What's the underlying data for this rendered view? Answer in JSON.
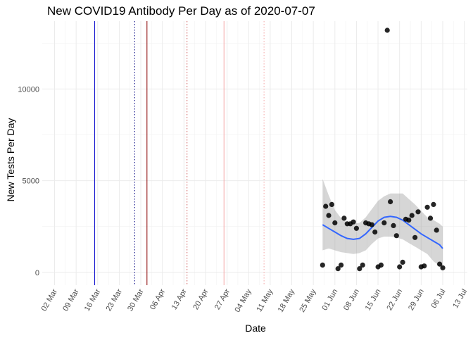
{
  "chart_data": {
    "type": "scatter",
    "title": "New COVID19 Antibody Per Day as of 2020-07-07",
    "xlabel": "Date",
    "ylabel": "New Tests Per Day",
    "x_tick_labels": [
      "02 Mar",
      "09 Mar",
      "16 Mar",
      "23 Mar",
      "30 Mar",
      "06 Apr",
      "13 Apr",
      "20 Apr",
      "27 Apr",
      "04 May",
      "11 May",
      "18 May",
      "25 May",
      "01 Jun",
      "08 Jun",
      "15 Jun",
      "22 Jun",
      "29 Jun",
      "06 Jul",
      "13 Jul"
    ],
    "x_ticks": [
      "2020-03-02",
      "2020-03-09",
      "2020-03-16",
      "2020-03-23",
      "2020-03-30",
      "2020-04-06",
      "2020-04-13",
      "2020-04-20",
      "2020-04-27",
      "2020-05-04",
      "2020-05-11",
      "2020-05-18",
      "2020-05-25",
      "2020-06-01",
      "2020-06-08",
      "2020-06-15",
      "2020-06-22",
      "2020-06-29",
      "2020-07-06",
      "2020-07-13"
    ],
    "xlim": [
      "2020-02-27",
      "2020-07-14"
    ],
    "ylim": [
      -700,
      13700
    ],
    "y_ticks": [
      0,
      5000,
      10000
    ],
    "grid": true,
    "vlines": [
      {
        "x": "2020-03-15",
        "color": "#0000cc",
        "style": "solid"
      },
      {
        "x": "2020-03-28",
        "color": "#000080",
        "style": "dotted"
      },
      {
        "x": "2020-04-01",
        "color": "#8b0000",
        "style": "solid"
      },
      {
        "x": "2020-04-14",
        "color": "#cd5c5c",
        "style": "dotted"
      },
      {
        "x": "2020-04-26",
        "color": "#f4a6a6",
        "style": "solid"
      },
      {
        "x": "2020-05-09",
        "color": "#f4a6a6",
        "style": "dotted"
      }
    ],
    "series": [
      {
        "type": "scatter",
        "color": "#000000",
        "points": [
          [
            "2020-05-28",
            400
          ],
          [
            "2020-05-29",
            3600
          ],
          [
            "2020-05-30",
            3100
          ],
          [
            "2020-05-31",
            3700
          ],
          [
            "2020-06-01",
            2700
          ],
          [
            "2020-06-02",
            200
          ],
          [
            "2020-06-03",
            400
          ],
          [
            "2020-06-04",
            2950
          ],
          [
            "2020-06-05",
            2650
          ],
          [
            "2020-06-06",
            2650
          ],
          [
            "2020-06-07",
            2750
          ],
          [
            "2020-06-08",
            2400
          ],
          [
            "2020-06-09",
            200
          ],
          [
            "2020-06-10",
            400
          ],
          [
            "2020-06-11",
            2700
          ],
          [
            "2020-06-12",
            2650
          ],
          [
            "2020-06-13",
            2600
          ],
          [
            "2020-06-14",
            2200
          ],
          [
            "2020-06-15",
            300
          ],
          [
            "2020-06-16",
            400
          ],
          [
            "2020-06-17",
            2700
          ],
          [
            "2020-06-18",
            13200
          ],
          [
            "2020-06-19",
            3850
          ],
          [
            "2020-06-20",
            2550
          ],
          [
            "2020-06-21",
            2000
          ],
          [
            "2020-06-22",
            300
          ],
          [
            "2020-06-23",
            550
          ],
          [
            "2020-06-24",
            2900
          ],
          [
            "2020-06-25",
            2850
          ],
          [
            "2020-06-26",
            3100
          ],
          [
            "2020-06-27",
            1900
          ],
          [
            "2020-06-28",
            3300
          ],
          [
            "2020-06-29",
            300
          ],
          [
            "2020-06-30",
            350
          ],
          [
            "2020-07-01",
            3550
          ],
          [
            "2020-07-02",
            2950
          ],
          [
            "2020-07-03",
            3700
          ],
          [
            "2020-07-04",
            2300
          ],
          [
            "2020-07-05",
            450
          ],
          [
            "2020-07-06",
            250
          ]
        ]
      },
      {
        "type": "smooth",
        "color": "#3366ff",
        "band_color": "#999999",
        "points": [
          [
            "2020-05-28",
            2600,
            1200,
            5100
          ],
          [
            "2020-05-30",
            2400,
            1300,
            4200
          ],
          [
            "2020-06-01",
            2200,
            1200,
            3400
          ],
          [
            "2020-06-03",
            2000,
            1100,
            2950
          ],
          [
            "2020-06-05",
            1850,
            1050,
            2700
          ],
          [
            "2020-06-07",
            1800,
            1000,
            2650
          ],
          [
            "2020-06-09",
            1850,
            1050,
            2700
          ],
          [
            "2020-06-11",
            2100,
            1200,
            3000
          ],
          [
            "2020-06-13",
            2450,
            1550,
            3450
          ],
          [
            "2020-06-15",
            2800,
            1850,
            3900
          ],
          [
            "2020-06-17",
            3000,
            1950,
            4150
          ],
          [
            "2020-06-19",
            3050,
            1950,
            4300
          ],
          [
            "2020-06-21",
            3000,
            1900,
            4300
          ],
          [
            "2020-06-23",
            2850,
            1800,
            4300
          ],
          [
            "2020-06-25",
            2600,
            1600,
            4000
          ],
          [
            "2020-06-27",
            2350,
            1400,
            3700
          ],
          [
            "2020-06-29",
            2100,
            1200,
            3350
          ],
          [
            "2020-07-01",
            1900,
            1000,
            3000
          ],
          [
            "2020-07-03",
            1700,
            600,
            2850
          ],
          [
            "2020-07-05",
            1500,
            350,
            2650
          ],
          [
            "2020-07-06",
            1300,
            200,
            2500
          ]
        ]
      }
    ]
  }
}
